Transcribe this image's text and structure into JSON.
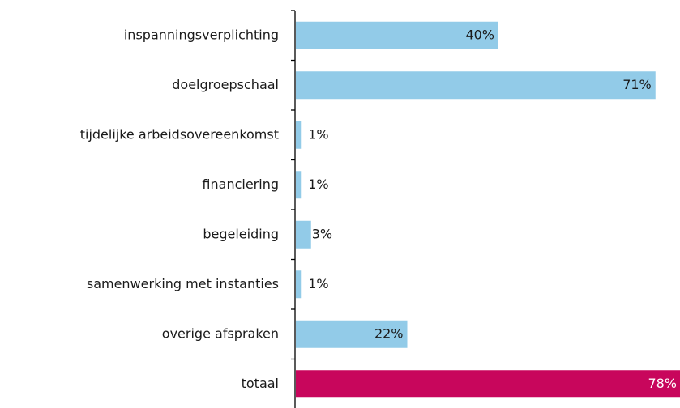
{
  "chart_data": {
    "type": "bar",
    "orientation": "horizontal",
    "categories": [
      "inspanningsverplichting",
      "doelgroepschaal",
      "tijdelijke arbeidsovereenkomst",
      "financiering",
      "begeleiding",
      "samenwerking met instanties",
      "overige afspraken",
      "totaal"
    ],
    "values": [
      40,
      71,
      1,
      1,
      3,
      1,
      22,
      78
    ],
    "value_labels": [
      "40%",
      "71%",
      "1%",
      "1%",
      "3%",
      "1%",
      "22%",
      "78%"
    ],
    "colors": [
      "#92cbe8",
      "#92cbe8",
      "#92cbe8",
      "#92cbe8",
      "#92cbe8",
      "#92cbe8",
      "#92cbe8",
      "#c8065c"
    ]
  }
}
